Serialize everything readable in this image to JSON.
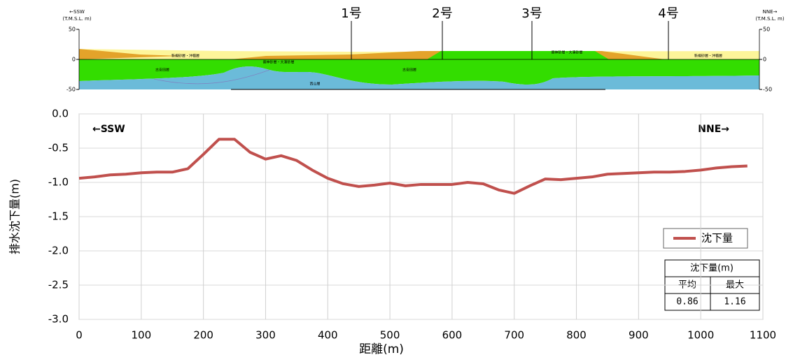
{
  "section": {
    "left_label": "←SSW",
    "left_unit": "(T.M.S.L. m)",
    "right_label": "NNE→",
    "right_unit": "(T.M.S.L. m)",
    "ylim": [
      -50,
      50
    ],
    "yticks": [
      50,
      0,
      -50
    ],
    "wells": [
      "1号",
      "2号",
      "3号",
      "4号"
    ],
    "layers": [
      "新規砂層・沖積層",
      "番神砂層・大湊砂層",
      "古安田層",
      "西山層"
    ]
  },
  "chart_data": {
    "type": "line",
    "x_label": "距離(m)",
    "y_label": "排水沈下量(m)",
    "annotations": [
      "←SSW",
      "NNE→"
    ],
    "x": [
      0,
      25,
      50,
      75,
      100,
      125,
      150,
      175,
      200,
      225,
      250,
      275,
      300,
      325,
      350,
      375,
      400,
      425,
      450,
      475,
      500,
      525,
      550,
      575,
      600,
      625,
      650,
      675,
      700,
      725,
      750,
      775,
      800,
      825,
      850,
      875,
      900,
      925,
      950,
      975,
      1000,
      1025,
      1050,
      1075
    ],
    "series": [
      {
        "name": "沈下量",
        "color": "#c0504d",
        "values": [
          -0.94,
          -0.92,
          -0.89,
          -0.88,
          -0.86,
          -0.85,
          -0.85,
          -0.8,
          -0.59,
          -0.37,
          -0.37,
          -0.56,
          -0.66,
          -0.61,
          -0.68,
          -0.82,
          -0.94,
          -1.02,
          -1.06,
          -1.04,
          -1.01,
          -1.05,
          -1.03,
          -1.03,
          -1.03,
          -1.0,
          -1.02,
          -1.11,
          -1.16,
          -1.05,
          -0.95,
          -0.96,
          -0.94,
          -0.92,
          -0.88,
          -0.87,
          -0.86,
          -0.85,
          -0.85,
          -0.84,
          -0.82,
          -0.79,
          -0.77,
          -0.76
        ]
      }
    ],
    "xlim": [
      0,
      1100
    ],
    "xticks": [
      0,
      100,
      200,
      300,
      400,
      500,
      600,
      700,
      800,
      900,
      1000,
      1100
    ],
    "ylim": [
      -3,
      0
    ],
    "yticks": [
      {
        "value": 0,
        "label": "0.0"
      },
      {
        "value": -0.5,
        "label": "-0.5"
      },
      {
        "value": -1,
        "label": "-1.0"
      },
      {
        "value": -1.5,
        "label": "-1.5"
      },
      {
        "value": -2,
        "label": "-2.0"
      },
      {
        "value": -2.5,
        "label": "-2.5"
      },
      {
        "value": -3,
        "label": "-3.0"
      }
    ],
    "grid": true
  },
  "summary_table": {
    "title": "沈下量(m)",
    "headers": [
      "平均",
      "最大"
    ],
    "values": [
      0.86,
      1.16
    ]
  }
}
